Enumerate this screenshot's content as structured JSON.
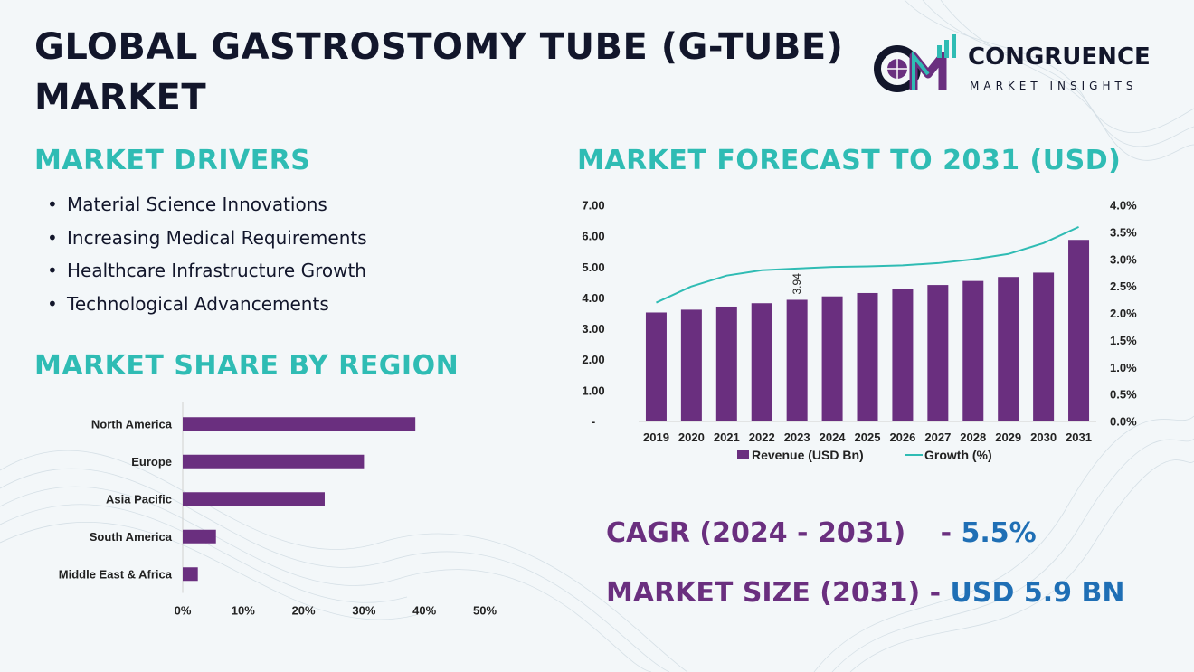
{
  "title": "GLOBAL GASTROSTOMY TUBE (G-TUBE) MARKET",
  "logo": {
    "name": "CONGRUENCE",
    "tagline": "MARKET INSIGHTS"
  },
  "drivers": {
    "heading": "MARKET DRIVERS",
    "items": [
      "Material Science Innovations",
      "Increasing Medical Requirements",
      "Healthcare Infrastructure Growth",
      "Technological Advancements"
    ]
  },
  "region": {
    "heading": "MARKET SHARE BY REGION"
  },
  "forecast": {
    "heading": "MARKET FORECAST TO 2031 (USD)"
  },
  "stats": {
    "cagr_label": "CAGR (2024 - 2031)",
    "cagr_sep": " - ",
    "cagr_value": "5.5%",
    "size_label": "MARKET SIZE (2031)",
    "size_sep": " - ",
    "size_value": "USD 5.9 BN"
  },
  "colors": {
    "bar": "#6a2f7f",
    "line": "#2fbcb4",
    "heading": "#2fbcb4",
    "title": "#12162b",
    "value": "#1f6fb5"
  },
  "chart_data": [
    {
      "type": "bar",
      "orientation": "horizontal",
      "categories": [
        "North America",
        "Europe",
        "Asia Pacific",
        "South America",
        "Middle East & Africa"
      ],
      "values": [
        38.5,
        30,
        23.5,
        5.5,
        2.5
      ],
      "xlim": [
        0,
        50
      ],
      "xticks": [
        "0%",
        "10%",
        "20%",
        "30%",
        "40%",
        "50%"
      ],
      "grid": false
    },
    {
      "type": "bar",
      "categories": [
        "2019",
        "2020",
        "2021",
        "2022",
        "2023",
        "2024",
        "2025",
        "2026",
        "2027",
        "2028",
        "2029",
        "2030",
        "2031"
      ],
      "series": [
        {
          "name": "Revenue (USD Bn)",
          "axis": "left",
          "type": "bar",
          "values": [
            3.53,
            3.62,
            3.72,
            3.83,
            3.94,
            4.05,
            4.16,
            4.28,
            4.42,
            4.55,
            4.68,
            4.82,
            5.88
          ]
        },
        {
          "name": "Growth (%)",
          "axis": "right",
          "type": "line",
          "values": [
            2.2,
            2.5,
            2.7,
            2.8,
            2.83,
            2.86,
            2.87,
            2.89,
            2.93,
            3.0,
            3.1,
            3.3,
            3.6
          ]
        }
      ],
      "data_labels": [
        {
          "category": "2023",
          "text": "3.94"
        }
      ],
      "ylim": [
        0,
        7
      ],
      "yticks": [
        "-",
        "1.00",
        "2.00",
        "3.00",
        "4.00",
        "5.00",
        "6.00",
        "7.00"
      ],
      "y2lim": [
        0,
        4
      ],
      "y2ticks": [
        "0.0%",
        "0.5%",
        "1.0%",
        "1.5%",
        "2.0%",
        "2.5%",
        "3.0%",
        "3.5%",
        "4.0%"
      ],
      "legend": "bottom",
      "grid": false
    }
  ]
}
